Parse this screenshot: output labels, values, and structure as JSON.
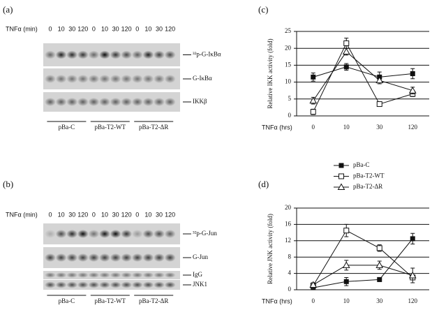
{
  "chart_data": [
    {
      "type": "line",
      "label": "(c)",
      "ylabel": "Relative IKK activity (fold)",
      "xlabel": "TNFα (hrs)",
      "categories": [
        "0",
        "10",
        "30",
        "120"
      ],
      "ylim": [
        0,
        25
      ],
      "yticks": [
        0,
        5,
        10,
        15,
        20,
        25
      ],
      "grid": true,
      "series": [
        {
          "name": "pBa-C",
          "color": "#111111",
          "marker": "square-filled",
          "values": [
            11.5,
            14.5,
            11.5,
            12.5
          ],
          "errors": [
            1.2,
            1,
            1.5,
            1.5
          ]
        },
        {
          "name": "pBa-T2-WT",
          "color": "#111111",
          "marker": "square-open",
          "values": [
            1.2,
            21.5,
            3.5,
            6.5
          ],
          "errors": [
            0.8,
            1.5,
            0.5,
            0.8
          ]
        },
        {
          "name": "pBa-T2-ΔR",
          "color": "#111111",
          "marker": "triangle-open",
          "values": [
            4.5,
            19,
            10.5,
            7.5
          ],
          "errors": [
            1,
            1,
            1,
            1
          ]
        }
      ]
    },
    {
      "type": "line",
      "label": "(d)",
      "ylabel": "Relative JNK activity (fold)",
      "xlabel": "TNFα (hrs)",
      "categories": [
        "0",
        "10",
        "30",
        "120"
      ],
      "ylim": [
        0,
        20
      ],
      "yticks": [
        0,
        4,
        8,
        12,
        16,
        20
      ],
      "grid": true,
      "series": [
        {
          "color": "#111111",
          "marker": "square-filled",
          "values": [
            0.5,
            2,
            2.5,
            12.5
          ],
          "errors": [
            0.5,
            1,
            0.5,
            1.3
          ]
        },
        {
          "color": "#111111",
          "marker": "square-open",
          "values": [
            1,
            14.5,
            10.2,
            3
          ],
          "errors": [
            0.5,
            1.5,
            0.8,
            0.5
          ]
        },
        {
          "color": "#111111",
          "marker": "triangle-open",
          "values": [
            1.2,
            6,
            6,
            3.5
          ],
          "errors": [
            0.5,
            1.2,
            1,
            1.8
          ]
        }
      ]
    }
  ],
  "blots": [
    {
      "label": "(a)",
      "axis_label": "TNFα (min)",
      "times": [
        0,
        10,
        30,
        120
      ],
      "strips": [
        "³²p-G-IκBα",
        "G-IκBα",
        "IKKβ"
      ],
      "groups": [
        "pBa-C",
        "pBa-T2-WT",
        "pBa-T2-ΔR"
      ]
    },
    {
      "label": "(b)",
      "axis_label": "TNFα (min)",
      "times": [
        0,
        10,
        30,
        120
      ],
      "strips": [
        "³²p-G-Jun",
        "G-Jun",
        "IgG",
        "JNK1"
      ],
      "groups": [
        "pBa-C",
        "pBa-T2-WT",
        "pBa-T2-ΔR"
      ]
    }
  ]
}
